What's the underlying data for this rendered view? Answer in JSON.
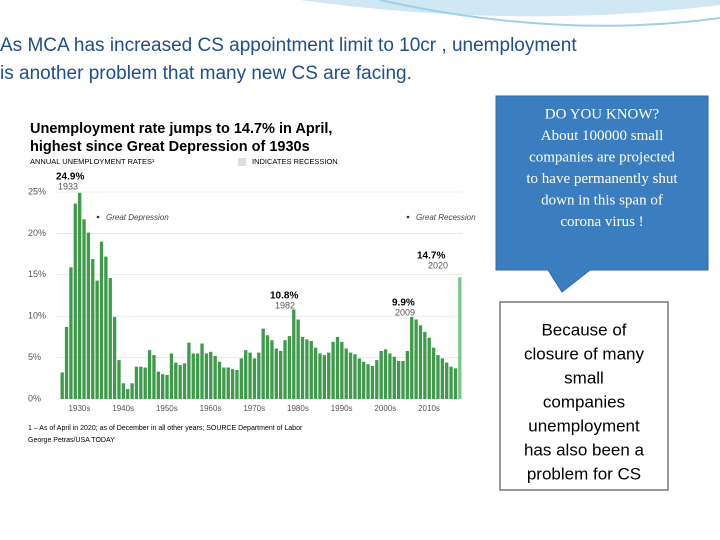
{
  "slide": {
    "title_lines": [
      "As MCA has increased CS appointment limit to 10cr , unemployment",
      "is another problem  that many new CS are facing."
    ],
    "callout_lines": [
      "DO YOU KNOW?",
      "About 100000 small",
      "companies are projected",
      "to have permanently shut",
      "down in this span of",
      "corona virus !"
    ],
    "note_lines": [
      "Because of",
      "closure of many",
      "small",
      "companies",
      "unemployment",
      "has also been a",
      "problem for CS"
    ]
  },
  "chart_data": {
    "type": "bar",
    "title_lines": [
      "Unemployment rate jumps to 14.7% in April,",
      "highest since Great Depression of 1930s"
    ],
    "subtitle": "ANNUAL UNEMPLOYMENT RATES¹",
    "legend_label": "INDICATES RECESSION",
    "annotations": [
      {
        "value": "24.9%",
        "year": "1933"
      },
      {
        "value": "10.8%",
        "year": "1982"
      },
      {
        "value": "9.9%",
        "year": "2009"
      },
      {
        "value": "14.7%",
        "year": "2020"
      }
    ],
    "periods": [
      "Great Depression",
      "Great Recession"
    ],
    "footnote_lines": [
      "1 – As of April in 2020; as of December in all other years; SOURCE Department of Labor",
      "George Petras/USA TODAY"
    ],
    "color": "#3f9b4b",
    "highlight_color": "#7cc68a",
    "categories": [
      null,
      "1930s",
      null,
      null,
      null,
      null,
      null,
      null,
      null,
      null,
      null,
      "1940s",
      null,
      null,
      null,
      null,
      null,
      null,
      null,
      null,
      null,
      "1950s",
      null,
      null,
      null,
      null,
      null,
      null,
      null,
      null,
      null,
      "1960s",
      null,
      null,
      null,
      null,
      null,
      null,
      null,
      null,
      null,
      "1970s",
      null,
      null,
      null,
      null,
      null,
      null,
      null,
      null,
      null,
      "1980s",
      null,
      null,
      null,
      null,
      null,
      null,
      null,
      null,
      null,
      "1990s",
      null,
      null,
      null,
      null,
      null,
      null,
      null,
      null,
      null,
      "2000s",
      null,
      null,
      null,
      null,
      null,
      null,
      null,
      null,
      null,
      "2010s",
      null,
      null,
      null,
      null,
      null,
      null,
      null,
      null,
      null,
      null
    ],
    "values": [
      3.2,
      8.7,
      15.9,
      23.6,
      24.9,
      21.7,
      20.1,
      16.9,
      14.3,
      19.0,
      17.2,
      14.6,
      9.9,
      4.7,
      1.9,
      1.2,
      1.9,
      3.9,
      3.9,
      3.8,
      5.9,
      5.3,
      3.3,
      3.0,
      2.9,
      5.5,
      4.4,
      4.1,
      4.3,
      6.8,
      5.5,
      5.5,
      6.7,
      5.5,
      5.7,
      5.2,
      4.5,
      3.8,
      3.8,
      3.6,
      3.5,
      4.9,
      5.9,
      5.6,
      4.9,
      5.6,
      8.5,
      7.7,
      7.1,
      6.1,
      5.8,
      7.1,
      7.6,
      10.8,
      9.6,
      7.5,
      7.2,
      7.0,
      6.2,
      5.5,
      5.3,
      5.6,
      6.9,
      7.5,
      6.9,
      6.1,
      5.6,
      5.4,
      4.9,
      4.5,
      4.2,
      4.0,
      4.7,
      5.8,
      6.0,
      5.5,
      5.1,
      4.6,
      4.6,
      5.8,
      9.9,
      9.6,
      8.9,
      8.1,
      7.4,
      6.2,
      5.3,
      4.9,
      4.4,
      3.9,
      3.7,
      14.7
    ],
    "ylim": [
      0,
      25
    ],
    "yticks": [
      {
        "value": 0,
        "label": "0%"
      },
      {
        "value": 5,
        "label": "5%"
      },
      {
        "value": 10,
        "label": "10%"
      },
      {
        "value": 15,
        "label": "15%"
      },
      {
        "value": 20,
        "label": "20%"
      },
      {
        "value": 25,
        "label": "25%"
      }
    ],
    "grid": true
  }
}
